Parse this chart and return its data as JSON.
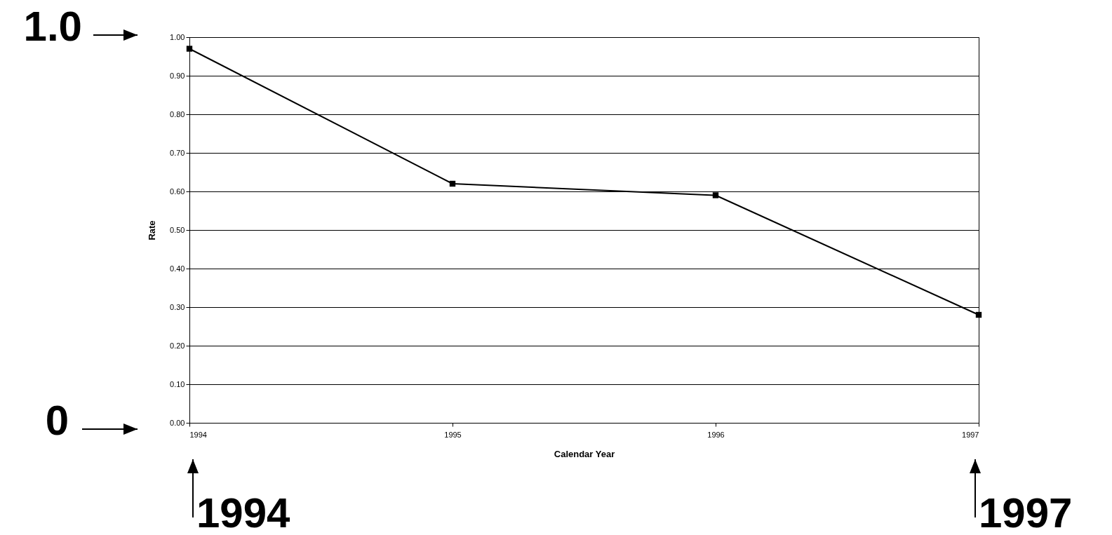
{
  "chart_data": {
    "type": "line",
    "xlabel": "Calendar Year",
    "ylabel": "Rate",
    "x": [
      1994,
      1995,
      1996,
      1997
    ],
    "series": [
      {
        "color": "#000000",
        "values": [
          0.97,
          0.62,
          0.59,
          0.28
        ]
      }
    ],
    "xlim": [
      1994,
      1997
    ],
    "xticks": [
      1994,
      1995,
      1996,
      1997
    ],
    "ylim": [
      0,
      1
    ],
    "yticks": [
      {
        "value": 0,
        "label": "0.00"
      },
      {
        "value": 0.1,
        "label": "0.10"
      },
      {
        "value": 0.2,
        "label": "0.20"
      },
      {
        "value": 0.3,
        "label": "0.30"
      },
      {
        "value": 0.4,
        "label": "0.40"
      },
      {
        "value": 0.5,
        "label": "0.50"
      },
      {
        "value": 0.6,
        "label": "0.60"
      },
      {
        "value": 0.7,
        "label": "0.70"
      },
      {
        "value": 0.8,
        "label": "0.80"
      },
      {
        "value": 0.9,
        "label": "0.90"
      },
      {
        "value": 1,
        "label": "1.00"
      }
    ],
    "grid": "y",
    "marker": "square",
    "line_style": "solid",
    "annotations": [
      "1.0",
      "0",
      "1994",
      "1997"
    ]
  }
}
